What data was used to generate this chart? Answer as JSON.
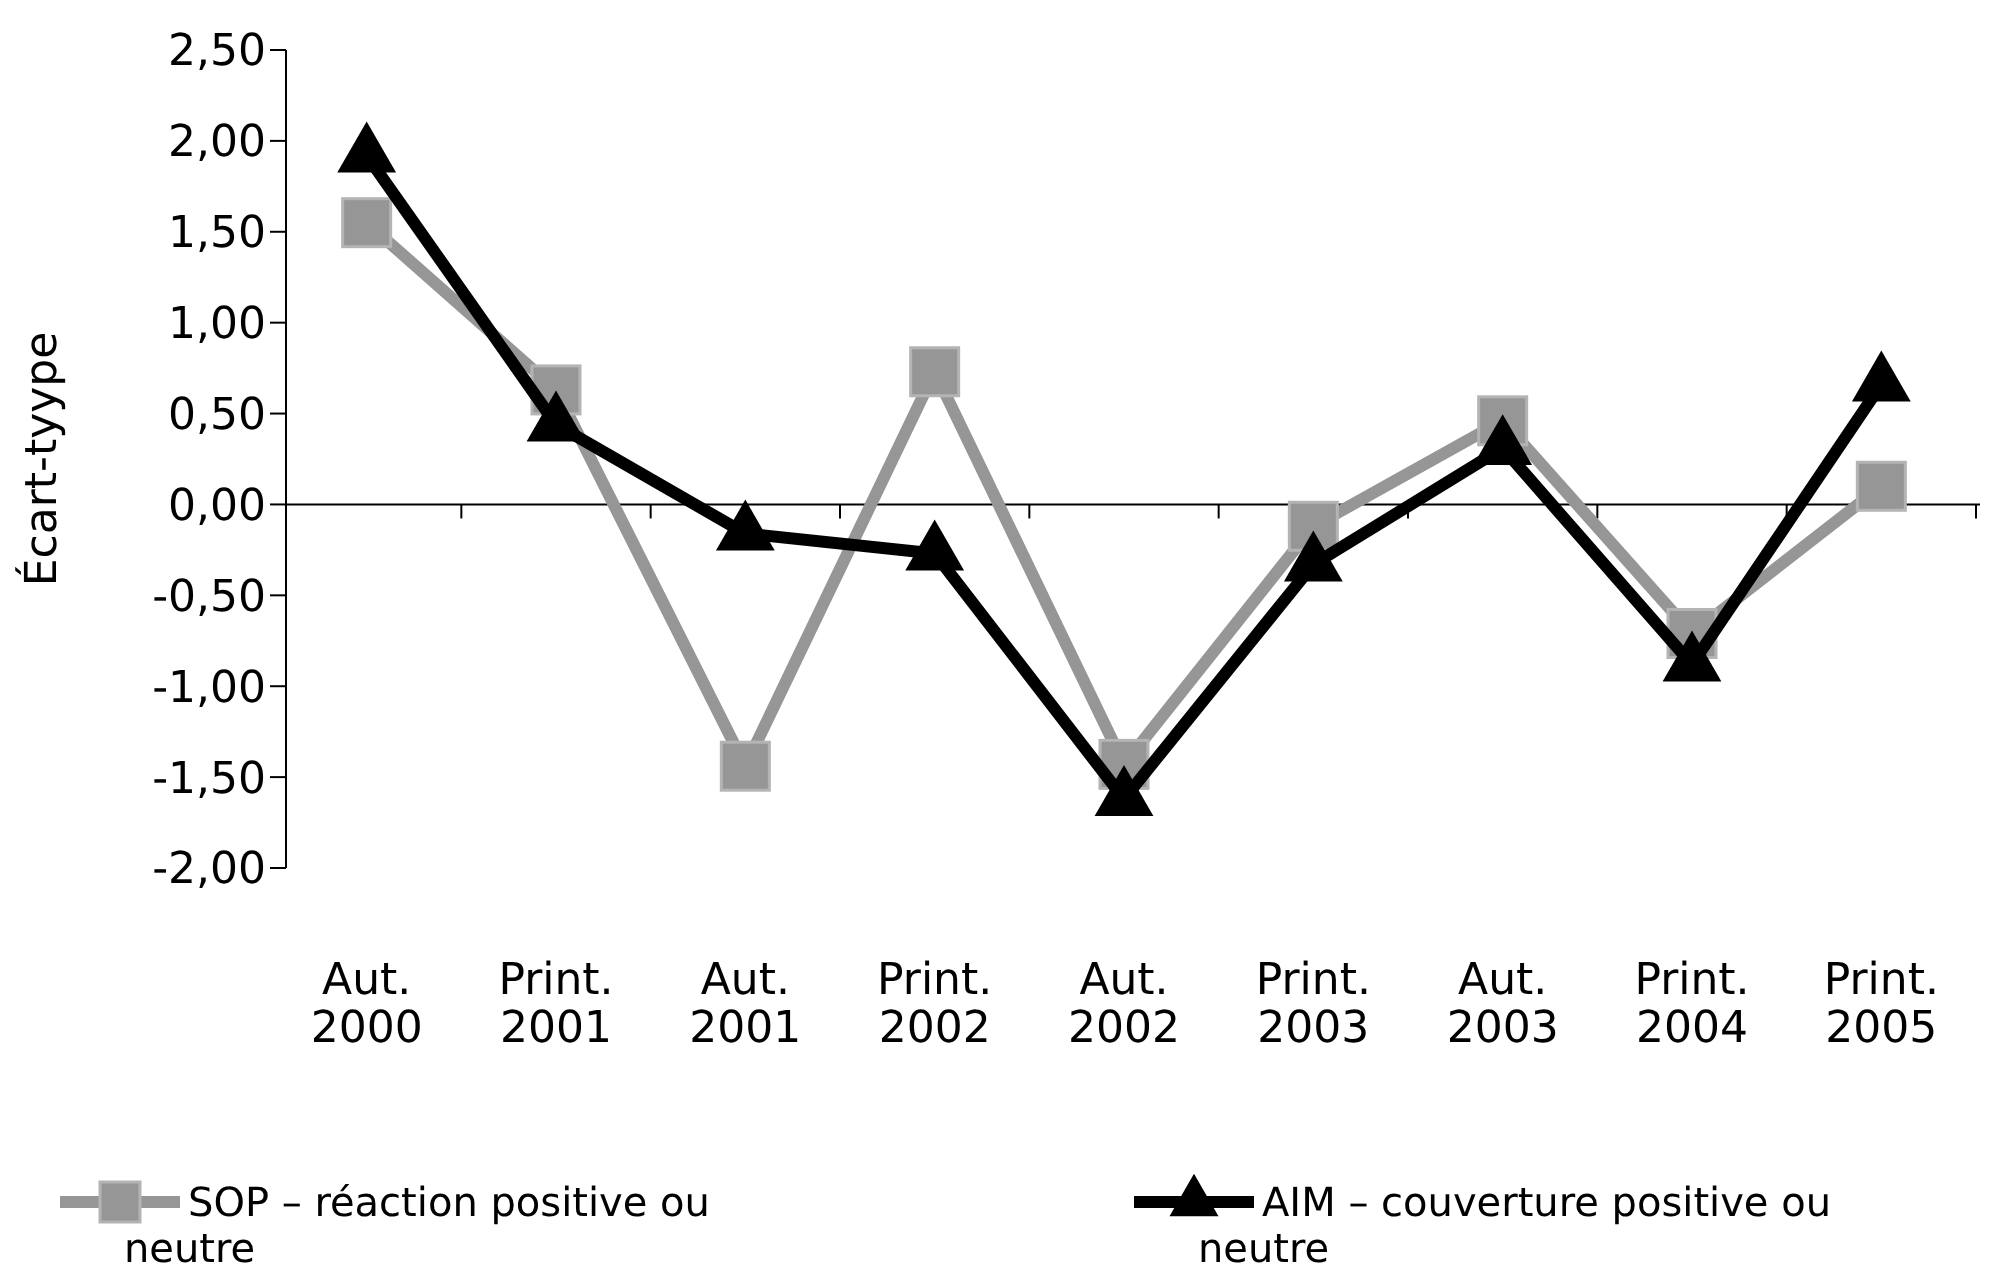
{
  "chart_data": {
    "type": "line",
    "ylabel": "Écart-tyype",
    "categories": [
      "Aut. 2000",
      "Print. 2001",
      "Aut. 2001",
      "Print. 2002",
      "Aut. 2002",
      "Print. 2003",
      "Aut. 2003",
      "Print. 2004",
      "Print. 2005"
    ],
    "series": [
      {
        "name": "SOP – réaction positive ou neutre",
        "color": "#969696",
        "marker": "square",
        "values": [
          1.55,
          0.63,
          -1.44,
          0.73,
          -1.43,
          -0.12,
          0.46,
          -0.71,
          0.1
        ]
      },
      {
        "name": "AIM – couverture positive ou neutre",
        "color": "#000000",
        "marker": "triangle",
        "values": [
          1.92,
          0.44,
          -0.16,
          -0.27,
          -1.62,
          -0.33,
          0.31,
          -0.88,
          0.66
        ]
      }
    ],
    "ylim": [
      -2,
      2.5
    ],
    "yticks": [
      {
        "value": -2,
        "label": "-2,00"
      },
      {
        "value": -1.5,
        "label": "-1,50"
      },
      {
        "value": -1,
        "label": "-1,00"
      },
      {
        "value": -0.5,
        "label": "-0,50"
      },
      {
        "value": 0,
        "label": "0,00"
      },
      {
        "value": 0.5,
        "label": "0,50"
      },
      {
        "value": 1,
        "label": "1,00"
      },
      {
        "value": 1.5,
        "label": "1,50"
      },
      {
        "value": 2,
        "label": "2,00"
      },
      {
        "value": 2.5,
        "label": "2,50"
      }
    ],
    "legend": "bottom",
    "line_style": "solid"
  }
}
